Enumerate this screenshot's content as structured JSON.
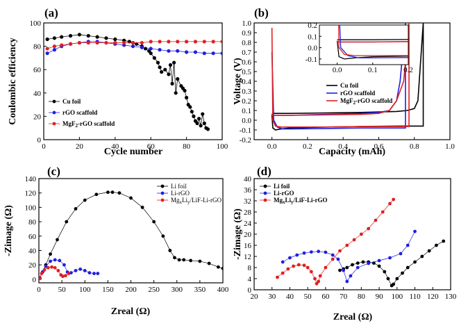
{
  "chart_data": [
    {
      "panel": "(a)",
      "type": "scatter",
      "xlabel": "Cycle number",
      "ylabel": "Coulombic efficiency",
      "xlim": [
        0,
        100
      ],
      "ylim": [
        0,
        100
      ],
      "xticks": [
        0,
        20,
        40,
        60,
        80,
        100
      ],
      "yticks": [
        0,
        20,
        40,
        60,
        80,
        100
      ],
      "legend": "bottom-left",
      "series": [
        {
          "name": "Cu foil",
          "color": "#000000",
          "x": [
            2,
            6,
            10,
            15,
            20,
            25,
            30,
            35,
            40,
            45,
            48,
            50,
            52,
            55,
            57,
            59,
            60,
            62,
            64,
            65,
            66,
            68,
            70,
            71,
            72,
            73,
            74,
            75,
            77,
            78,
            79,
            80,
            81,
            82,
            83,
            84,
            85,
            86,
            87,
            88,
            89,
            90,
            91,
            92
          ],
          "y": [
            86,
            87,
            88,
            89,
            90,
            89,
            88,
            87,
            86,
            85,
            84,
            83,
            82,
            80,
            78,
            76,
            74,
            70,
            66,
            62,
            58,
            60,
            56,
            64,
            48,
            66,
            40,
            52,
            46,
            44,
            42,
            36,
            30,
            28,
            24,
            20,
            16,
            14,
            18,
            12,
            22,
            14,
            10,
            9
          ]
        },
        {
          "name": "rGO scaffold",
          "color": "#1f1fe0",
          "x": [
            2,
            6,
            10,
            15,
            20,
            25,
            30,
            35,
            40,
            45,
            50,
            55,
            60,
            65,
            70,
            75,
            80,
            85,
            90,
            95,
            100
          ],
          "y": [
            74,
            77,
            80,
            82,
            83,
            84,
            84,
            83,
            82,
            81,
            80,
            79,
            78,
            77,
            76,
            76,
            75,
            75,
            74,
            74,
            74
          ]
        },
        {
          "name": "MgF2-rGO scaffold",
          "color": "#e01f1f",
          "x": [
            2,
            6,
            10,
            15,
            20,
            25,
            30,
            35,
            40,
            45,
            50,
            55,
            60,
            65,
            70,
            75,
            80,
            85,
            90,
            95,
            100
          ],
          "y": [
            78,
            80,
            81,
            82,
            83,
            83,
            83,
            83,
            83,
            83,
            83,
            83,
            84,
            84,
            84,
            84,
            84,
            84,
            84,
            84,
            84
          ]
        }
      ]
    },
    {
      "panel": "(b)",
      "type": "line",
      "xlabel": "Capacity (mAh)",
      "ylabel": "Voltage (V)",
      "xlim": [
        -0.1,
        1.0
      ],
      "ylim": [
        -0.2,
        1.0
      ],
      "xticks": [
        0.0,
        0.2,
        0.4,
        0.6,
        0.8,
        1.0
      ],
      "yticks": [
        -0.2,
        -0.1,
        0.0,
        0.1,
        0.2,
        0.3,
        0.4,
        0.5,
        0.6,
        0.7,
        0.8,
        0.9,
        1.0
      ],
      "legend": "inside-right",
      "inset": {
        "xlim": [
          -0.05,
          0.2
        ],
        "ylim": [
          -0.15,
          0.2
        ],
        "xticks": [
          0.0,
          0.1,
          0.2
        ],
        "yticks": [
          -0.1,
          0.0,
          0.1,
          0.2
        ]
      },
      "series": [
        {
          "name": "Cu foil",
          "color": "#000000",
          "x": [
            0.0,
            0.005,
            0.02,
            0.05,
            0.1,
            0.3,
            0.5,
            0.7,
            0.8,
            0.85,
            0.85,
            0.82,
            0.8,
            0.76,
            0.7,
            0.6,
            0.5,
            0.3,
            0.1,
            0.0
          ],
          "y": [
            0.06,
            -0.08,
            -0.1,
            -0.09,
            -0.08,
            -0.07,
            -0.065,
            -0.06,
            -0.06,
            -0.06,
            1.0,
            0.2,
            0.12,
            0.1,
            0.09,
            0.085,
            0.08,
            0.075,
            0.07,
            0.07
          ]
        },
        {
          "name": "rGO scaffold",
          "color": "#1f1fe0",
          "x": [
            0.0,
            0.01,
            0.03,
            0.06,
            0.1,
            0.3,
            0.5,
            0.7,
            0.75,
            0.75,
            0.72,
            0.7,
            0.66,
            0.6,
            0.5,
            0.3,
            0.1,
            0.0
          ],
          "y": [
            0.7,
            0.0,
            -0.07,
            -0.09,
            -0.09,
            -0.085,
            -0.08,
            -0.08,
            -0.08,
            1.0,
            0.4,
            0.2,
            0.1,
            0.08,
            0.07,
            0.06,
            0.05,
            0.05
          ]
        },
        {
          "name": "MgF2-rGO scaffold",
          "color": "#e01f1f",
          "x": [
            0.0,
            0.005,
            0.02,
            0.05,
            0.1,
            0.3,
            0.5,
            0.7,
            0.77,
            0.77,
            0.74,
            0.7,
            0.66,
            0.6,
            0.5,
            0.3,
            0.1,
            0.0
          ],
          "y": [
            0.95,
            0.0,
            -0.06,
            -0.07,
            -0.07,
            -0.07,
            -0.065,
            -0.065,
            -0.065,
            1.0,
            0.4,
            0.2,
            0.1,
            0.07,
            0.06,
            0.055,
            0.05,
            0.05
          ]
        }
      ]
    },
    {
      "panel": "(c)",
      "type": "line",
      "xlabel": "Zreal (Ω)",
      "ylabel": "-Zimage (Ω)",
      "xlim": [
        0,
        400
      ],
      "ylim": [
        -5,
        140
      ],
      "xticks": [
        0,
        50,
        100,
        150,
        200,
        250,
        300,
        350,
        400
      ],
      "yticks": [
        0,
        20,
        40,
        60,
        80,
        100,
        120,
        140
      ],
      "legend": "top-right",
      "series": [
        {
          "name": "Li foil",
          "color": "#000000",
          "x": [
            2,
            8,
            15,
            25,
            40,
            60,
            80,
            100,
            125,
            150,
            160,
            175,
            200,
            225,
            250,
            270,
            285,
            295,
            305,
            315,
            330,
            350,
            370,
            390,
            400
          ],
          "y": [
            2,
            10,
            20,
            35,
            55,
            80,
            98,
            110,
            118,
            121,
            121,
            120,
            113,
            100,
            80,
            60,
            40,
            30,
            27,
            27,
            26,
            25,
            22,
            17,
            15
          ]
        },
        {
          "name": "Li-rGO",
          "color": "#1f1fe0",
          "x": [
            2,
            8,
            15,
            25,
            35,
            45,
            55,
            62,
            70,
            80,
            90,
            100,
            110,
            120,
            128
          ],
          "y": [
            2,
            10,
            18,
            25,
            27,
            26,
            20,
            10,
            9,
            12,
            14,
            12,
            9,
            8,
            8
          ]
        },
        {
          "name": "MgxLiy/LiF-Li-rGO",
          "color": "#e01f1f",
          "x": [
            2,
            6,
            12,
            20,
            28,
            35,
            42,
            48,
            52,
            58,
            65
          ],
          "y": [
            1,
            8,
            13,
            16,
            17,
            16,
            12,
            6,
            4,
            5,
            8
          ]
        }
      ]
    },
    {
      "panel": "(d)",
      "type": "line",
      "xlabel": "Zreal (Ω)",
      "ylabel": "-Zimage (Ω)",
      "xlim": [
        20,
        130
      ],
      "ylim": [
        0,
        40
      ],
      "xticks": [
        20,
        30,
        40,
        50,
        60,
        70,
        80,
        90,
        100,
        110,
        120,
        130
      ],
      "yticks": [
        0,
        4,
        8,
        12,
        16,
        20,
        24,
        28,
        32,
        36,
        40
      ],
      "legend": "top-left",
      "series": [
        {
          "name": "Li foil",
          "color": "#000000",
          "x": [
            68,
            70,
            72,
            75,
            78,
            81,
            84,
            87,
            90,
            93,
            95,
            97,
            98,
            100,
            103,
            106,
            110,
            114,
            118,
            122,
            126
          ],
          "y": [
            7,
            7.5,
            8,
            9,
            9.6,
            10,
            10,
            9.6,
            8.5,
            6.5,
            4,
            1.5,
            2,
            4,
            6,
            8,
            10,
            12,
            14,
            16,
            17.5
          ]
        },
        {
          "name": "Li-rGO",
          "color": "#1f1fe0",
          "x": [
            36,
            40,
            44,
            48,
            52,
            56,
            60,
            64,
            67,
            70,
            72,
            74,
            78,
            84,
            90,
            96,
            102,
            106,
            110
          ],
          "y": [
            10,
            11.5,
            12.5,
            13.2,
            13.6,
            13.8,
            13.5,
            12.5,
            11,
            7,
            3,
            5,
            8,
            9.5,
            10.5,
            11.5,
            13,
            16,
            21
          ]
        },
        {
          "name": "MgxLiy/LiF-Li-rGO",
          "color": "#e01f1f",
          "x": [
            33,
            36,
            39,
            42,
            45,
            48,
            50,
            52,
            54,
            55,
            56,
            57,
            60,
            64,
            68,
            72,
            76,
            80,
            84,
            88,
            92,
            96,
            98
          ],
          "y": [
            4.5,
            6,
            7.5,
            8.5,
            9,
            8.8,
            8,
            6.5,
            4,
            2.2,
            3,
            5,
            8,
            11,
            14,
            16,
            18,
            20,
            22,
            25,
            28,
            31,
            32.5
          ]
        }
      ]
    }
  ]
}
